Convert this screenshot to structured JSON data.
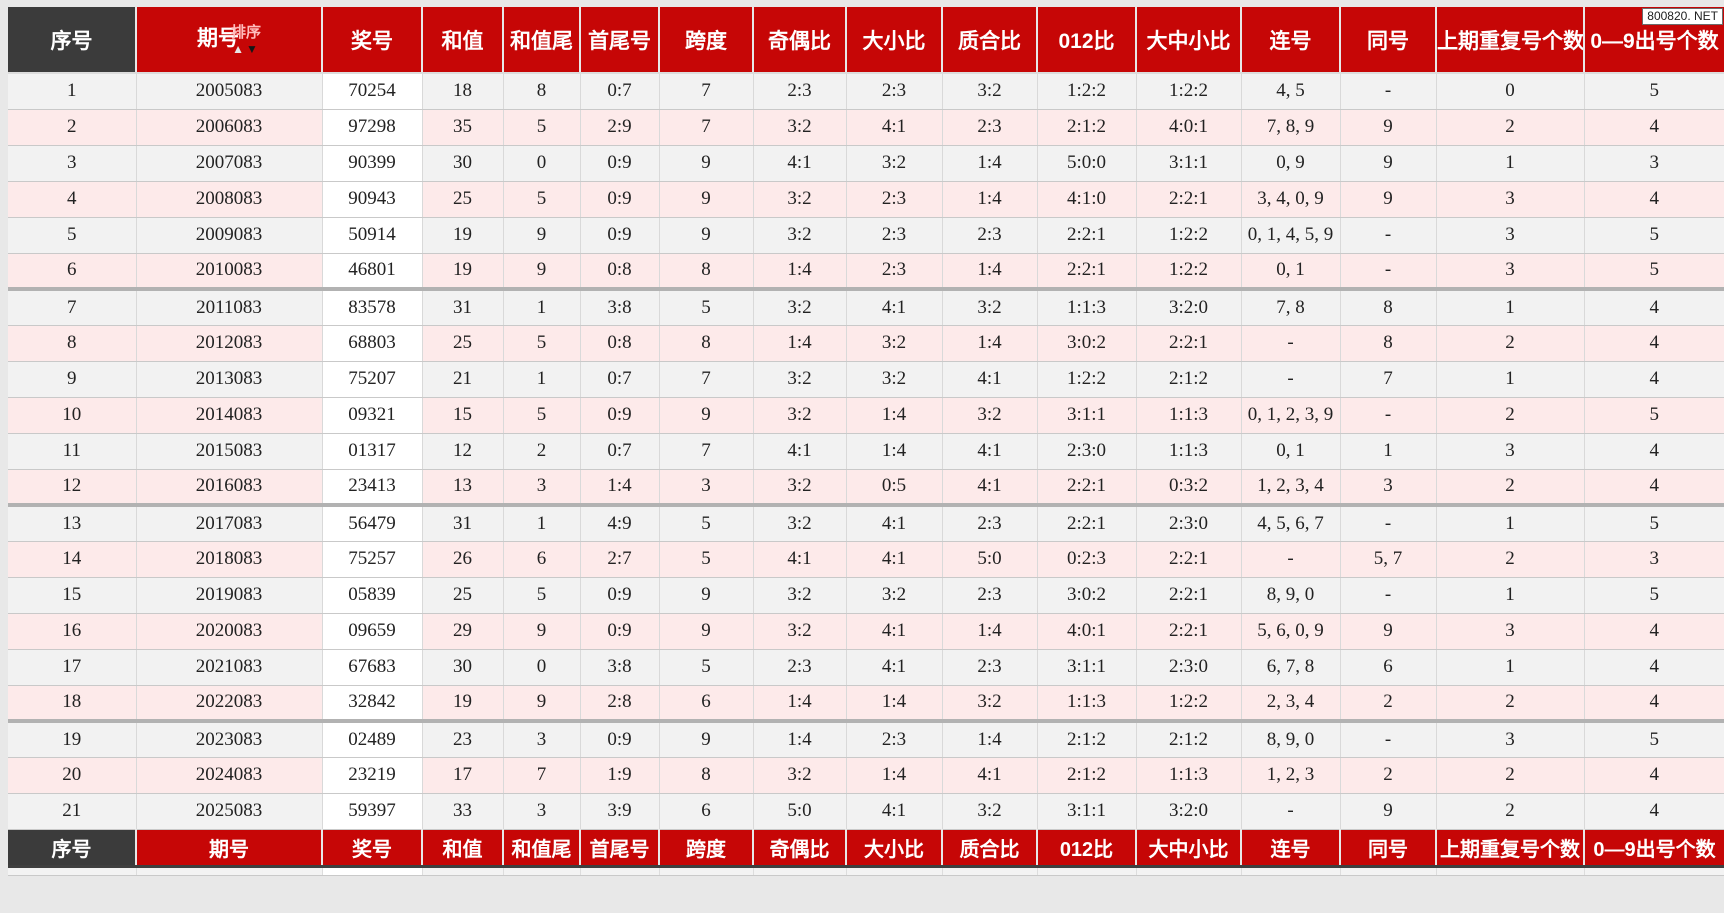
{
  "watermark": "800820. NET",
  "table": {
    "header": {
      "columns": [
        "序号",
        "期号",
        "奖号",
        "和值",
        "和值尾",
        "首尾号",
        "跨度",
        "奇偶比",
        "大小比",
        "质合比",
        "012比",
        "大中小比",
        "连号",
        "同号",
        "上期重复号个数",
        "0—9出号个数"
      ],
      "sort": {
        "label": "排序",
        "asc_icon": "▲",
        "desc_icon": "▼"
      }
    },
    "footer": {
      "columns": [
        "序号",
        "期号",
        "奖号",
        "和值",
        "和值尾",
        "首尾号",
        "跨度",
        "奇偶比",
        "大小比",
        "质合比",
        "012比",
        "大中小比",
        "连号",
        "同号",
        "上期重复号个数",
        "0—9出号个数"
      ]
    },
    "rows": [
      [
        "1",
        "2005083",
        "70254",
        "18",
        "8",
        "0:7",
        "7",
        "2:3",
        "2:3",
        "3:2",
        "1:2:2",
        "1:2:2",
        "4, 5",
        "-",
        "0",
        "5"
      ],
      [
        "2",
        "2006083",
        "97298",
        "35",
        "5",
        "2:9",
        "7",
        "3:2",
        "4:1",
        "2:3",
        "2:1:2",
        "4:0:1",
        "7, 8, 9",
        "9",
        "2",
        "4"
      ],
      [
        "3",
        "2007083",
        "90399",
        "30",
        "0",
        "0:9",
        "9",
        "4:1",
        "3:2",
        "1:4",
        "5:0:0",
        "3:1:1",
        "0, 9",
        "9",
        "1",
        "3"
      ],
      [
        "4",
        "2008083",
        "90943",
        "25",
        "5",
        "0:9",
        "9",
        "3:2",
        "2:3",
        "1:4",
        "4:1:0",
        "2:2:1",
        "3, 4, 0, 9",
        "9",
        "3",
        "4"
      ],
      [
        "5",
        "2009083",
        "50914",
        "19",
        "9",
        "0:9",
        "9",
        "3:2",
        "2:3",
        "2:3",
        "2:2:1",
        "1:2:2",
        "0, 1, 4, 5, 9",
        "-",
        "3",
        "5"
      ],
      [
        "6",
        "2010083",
        "46801",
        "19",
        "9",
        "0:8",
        "8",
        "1:4",
        "2:3",
        "1:4",
        "2:2:1",
        "1:2:2",
        "0, 1",
        "-",
        "3",
        "5"
      ],
      [
        "7",
        "2011083",
        "83578",
        "31",
        "1",
        "3:8",
        "5",
        "3:2",
        "4:1",
        "3:2",
        "1:1:3",
        "3:2:0",
        "7, 8",
        "8",
        "1",
        "4"
      ],
      [
        "8",
        "2012083",
        "68803",
        "25",
        "5",
        "0:8",
        "8",
        "1:4",
        "3:2",
        "1:4",
        "3:0:2",
        "2:2:1",
        "-",
        "8",
        "2",
        "4"
      ],
      [
        "9",
        "2013083",
        "75207",
        "21",
        "1",
        "0:7",
        "7",
        "3:2",
        "3:2",
        "4:1",
        "1:2:2",
        "2:1:2",
        "-",
        "7",
        "1",
        "4"
      ],
      [
        "10",
        "2014083",
        "09321",
        "15",
        "5",
        "0:9",
        "9",
        "3:2",
        "1:4",
        "3:2",
        "3:1:1",
        "1:1:3",
        "0, 1, 2, 3, 9",
        "-",
        "2",
        "5"
      ],
      [
        "11",
        "2015083",
        "01317",
        "12",
        "2",
        "0:7",
        "7",
        "4:1",
        "1:4",
        "4:1",
        "2:3:0",
        "1:1:3",
        "0, 1",
        "1",
        "3",
        "4"
      ],
      [
        "12",
        "2016083",
        "23413",
        "13",
        "3",
        "1:4",
        "3",
        "3:2",
        "0:5",
        "4:1",
        "2:2:1",
        "0:3:2",
        "1, 2, 3, 4",
        "3",
        "2",
        "4"
      ],
      [
        "13",
        "2017083",
        "56479",
        "31",
        "1",
        "4:9",
        "5",
        "3:2",
        "4:1",
        "2:3",
        "2:2:1",
        "2:3:0",
        "4, 5, 6, 7",
        "-",
        "1",
        "5"
      ],
      [
        "14",
        "2018083",
        "75257",
        "26",
        "6",
        "2:7",
        "5",
        "4:1",
        "4:1",
        "5:0",
        "0:2:3",
        "2:2:1",
        "-",
        "5, 7",
        "2",
        "3"
      ],
      [
        "15",
        "2019083",
        "05839",
        "25",
        "5",
        "0:9",
        "9",
        "3:2",
        "3:2",
        "2:3",
        "3:0:2",
        "2:2:1",
        "8, 9, 0",
        "-",
        "1",
        "5"
      ],
      [
        "16",
        "2020083",
        "09659",
        "29",
        "9",
        "0:9",
        "9",
        "3:2",
        "4:1",
        "1:4",
        "4:0:1",
        "2:2:1",
        "5, 6, 0, 9",
        "9",
        "3",
        "4"
      ],
      [
        "17",
        "2021083",
        "67683",
        "30",
        "0",
        "3:8",
        "5",
        "2:3",
        "4:1",
        "2:3",
        "3:1:1",
        "2:3:0",
        "6, 7, 8",
        "6",
        "1",
        "4"
      ],
      [
        "18",
        "2022083",
        "32842",
        "19",
        "9",
        "2:8",
        "6",
        "1:4",
        "1:4",
        "3:2",
        "1:1:3",
        "1:2:2",
        "2, 3, 4",
        "2",
        "2",
        "4"
      ],
      [
        "19",
        "2023083",
        "02489",
        "23",
        "3",
        "0:9",
        "9",
        "1:4",
        "2:3",
        "1:4",
        "2:1:2",
        "2:1:2",
        "8, 9, 0",
        "-",
        "3",
        "5"
      ],
      [
        "20",
        "2024083",
        "23219",
        "17",
        "7",
        "1:9",
        "8",
        "3:2",
        "1:4",
        "4:1",
        "2:1:2",
        "1:1:3",
        "1, 2, 3",
        "2",
        "2",
        "4"
      ],
      [
        "21",
        "2025083",
        "59397",
        "33",
        "3",
        "3:9",
        "6",
        "5:0",
        "4:1",
        "3:2",
        "3:1:1",
        "3:2:0",
        "-",
        "9",
        "2",
        "4"
      ]
    ],
    "group_separators_after_rows": [
      6,
      12,
      18
    ]
  },
  "colors": {
    "header_red": "#c60606",
    "serial_header_dark": "#3b3b3b",
    "row_alt_gray": "#f2f2f2",
    "row_alt_pink": "#fdeaea",
    "prize_col_white": "#ffffff",
    "group_separator_gray": "#b2b2b2",
    "page_background": "#e8e8e8"
  }
}
